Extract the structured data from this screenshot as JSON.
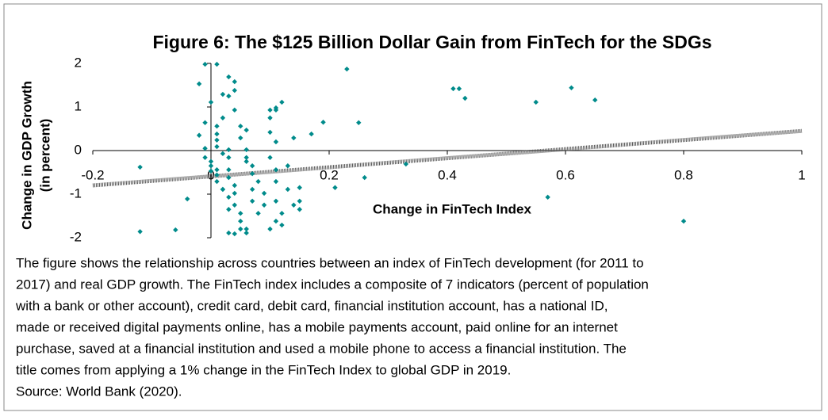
{
  "chart_data": {
    "type": "scatter",
    "title": "Figure 6: The $125 Billion Dollar Gain from FinTech for the SDGs",
    "x_label": "Change in FinTech Index",
    "y_label": [
      "Change in GDP Growth",
      "(in percent)"
    ],
    "xlim": [
      -0.2,
      1
    ],
    "ylim": [
      -2,
      2
    ],
    "xticks": [
      -0.2,
      0,
      0.2,
      0.4,
      0.6,
      0.8,
      1
    ],
    "yticks": [
      2,
      1,
      0,
      -1,
      -2
    ],
    "color": "#008b8b",
    "trendline": {
      "x": [
        -0.2,
        1
      ],
      "y": [
        -0.8,
        0.45
      ]
    },
    "x": [
      -0.12,
      -0.12,
      -0.06,
      -0.04,
      -0.02,
      -0.01,
      0.01,
      -0.01,
      -0.02,
      -0.01,
      -0.01,
      0.0,
      0.0,
      0.0,
      0.01,
      0.01,
      0.01,
      0.01,
      0.02,
      0.0,
      0.01,
      0.01,
      0.01,
      0.02,
      0.02,
      0.03,
      0.03,
      0.04,
      0.04,
      0.04,
      0.05,
      0.05,
      0.02,
      0.03,
      0.03,
      0.03,
      0.03,
      0.04,
      0.04,
      0.04,
      0.05,
      0.05,
      0.03,
      0.04,
      0.05,
      0.06,
      0.06,
      0.02,
      0.03,
      0.03,
      0.06,
      0.06,
      0.06,
      0.07,
      0.07,
      0.07,
      0.08,
      0.08,
      0.09,
      0.09,
      0.1,
      0.1,
      0.1,
      0.11,
      0.06,
      0.07,
      0.1,
      0.11,
      0.11,
      0.11,
      0.12,
      0.12,
      0.13,
      0.13,
      0.14,
      0.14,
      0.15,
      0.15,
      0.15,
      0.11,
      0.11,
      0.12,
      0.17,
      0.19,
      0.21,
      0.23,
      0.25,
      0.26,
      0.33,
      0.41,
      0.42,
      0.43,
      0.55,
      0.61,
      0.65,
      0.57,
      0.8,
      0.1,
      0.11
    ],
    "values": [
      -0.38,
      -1.86,
      -1.82,
      -1.11,
      1.53,
      1.98,
      1.98,
      0.64,
      0.35,
      0.05,
      -0.16,
      -0.35,
      -0.47,
      1.11,
      0.56,
      0.38,
      0.24,
      0.09,
      -0.07,
      -0.25,
      -0.44,
      -0.56,
      -0.71,
      -0.89,
      1.29,
      1.25,
      1.69,
      1.58,
      1.38,
      0.93,
      0.56,
      0.29,
      0.75,
      0.02,
      -0.16,
      -0.44,
      -0.62,
      -0.8,
      -0.98,
      -1.25,
      -1.44,
      -1.62,
      -1.89,
      -1.91,
      -1.8,
      -1.89,
      -1.8,
      -0.89,
      -1.07,
      -1.35,
      0.47,
      0.02,
      -0.16,
      -0.53,
      -0.89,
      -1.16,
      -1.44,
      -0.71,
      -1.25,
      -0.98,
      0.93,
      0.75,
      0.42,
      0.2,
      -0.25,
      -0.35,
      -0.16,
      -0.44,
      -0.71,
      -1.16,
      -1.44,
      -1.71,
      -0.35,
      -0.89,
      0.29,
      -1.25,
      -1.16,
      -1.35,
      -0.85,
      0.98,
      0.93,
      1.11,
      0.38,
      0.65,
      -0.85,
      1.87,
      0.64,
      -0.62,
      -0.31,
      1.42,
      1.42,
      1.2,
      1.11,
      1.44,
      1.16,
      -1.07,
      -1.62,
      -1.8,
      -1.62
    ]
  },
  "caption": {
    "lines": [
      "The figure shows the relationship across countries between an index of FinTech development (for 2011 to",
      "2017) and real GDP growth. The FinTech index includes a composite of 7 indicators (percent of population",
      "with a bank or other account), credit card, debit card, financial institution account, has a national ID,",
      "made or received digital payments online, has a mobile payments account, paid online for an internet",
      "purchase, saved at a financial institution and used a mobile phone to access a financial institution. The",
      "title comes from applying a 1% change in the FinTech Index to global GDP in 2019."
    ],
    "source": "Source: World Bank (2020)."
  }
}
